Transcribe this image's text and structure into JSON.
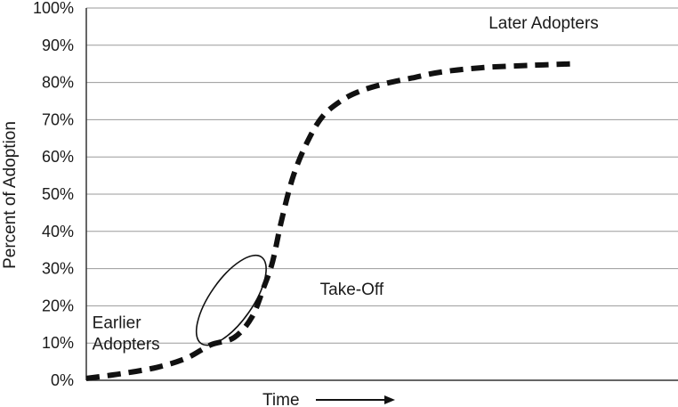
{
  "chart_data": {
    "type": "line",
    "title": "",
    "xlabel": "Time",
    "ylabel": "Percent of Adoption",
    "ylim": [
      0,
      100
    ],
    "yticks": [
      "0%",
      "10%",
      "20%",
      "30%",
      "40%",
      "50%",
      "60%",
      "70%",
      "80%",
      "90%",
      "100%"
    ],
    "xlim": [
      0,
      100
    ],
    "x_ticks_shown": false,
    "grid": "horizontal",
    "line_style": "dashed",
    "line_color": "#111111",
    "series": [
      {
        "x": [
          0,
          6,
          12,
          17,
          21,
          25,
          28,
          30,
          31.5,
          33,
          35,
          37.5,
          40,
          43,
          46,
          50,
          55,
          60,
          67,
          75,
          82
        ],
        "values": [
          0.5,
          1.8,
          3.5,
          6,
          9.5,
          11.5,
          17,
          25,
          32,
          43,
          55,
          64.5,
          71,
          75,
          77.5,
          79.5,
          81.2,
          82.8,
          84,
          84.6,
          85
        ]
      }
    ],
    "annotations": [
      {
        "text": "Later Adopters",
        "x": 68,
        "y": 94.5,
        "lines": [
          "Later Adopters"
        ]
      },
      {
        "text": "Take-Off",
        "x": 39.5,
        "y": 23,
        "lines": [
          "Take-Off"
        ]
      },
      {
        "text": "Earlier Adopters",
        "x": 1,
        "y": 14,
        "lines": [
          "Earlier",
          "Adopters"
        ]
      }
    ],
    "highlight_ellipse": {
      "cx": 24.5,
      "cy": 21.5,
      "rx": 10,
      "ry": 3.6,
      "angle_deg": -55
    }
  }
}
